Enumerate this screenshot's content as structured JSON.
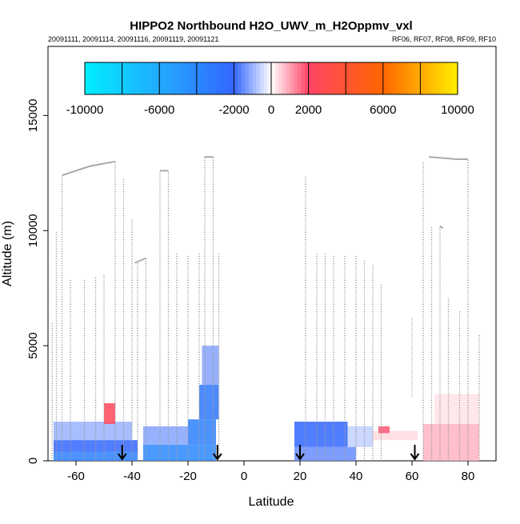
{
  "chart_data": {
    "type": "heatmap",
    "title": "HIPPO2 Northbound H2O_UWV_m_H2Oppmv_vxl",
    "subtitle_left": "20091111, 20091114, 20091116, 20091119, 20091121",
    "subtitle_right": "RF06, RF07, RF08, RF09, RF10",
    "xlabel": "Latitude",
    "ylabel": "Altitude (m)",
    "xlim": [
      -70,
      90
    ],
    "ylim": [
      0,
      18000
    ],
    "xticks": [
      -60,
      -40,
      -20,
      0,
      20,
      40,
      60,
      80
    ],
    "yticks": [
      0,
      5000,
      10000,
      15000
    ],
    "colorbar": {
      "min": -10000,
      "max": 10000,
      "tick_values": [
        -10000,
        -6000,
        -2000,
        0,
        2000,
        6000,
        10000
      ],
      "tick_labels": [
        "-10000",
        "-6000",
        "-2000",
        "0",
        "2000",
        "6000",
        "10000"
      ],
      "colors": [
        "#00eeff",
        "#22aaff",
        "#3366ff",
        "#ffffff",
        "#ff4466",
        "#ff6600",
        "#ffee00"
      ]
    },
    "flight_boundary_markers_lat": [
      -43.5,
      -9.5,
      20,
      61
    ],
    "flight_track_segments": [
      [
        [
          -65,
          12400
        ],
        [
          -55,
          12800
        ],
        [
          -46,
          13000
        ]
      ],
      [
        [
          -30,
          12600
        ],
        [
          -27,
          12600
        ]
      ],
      [
        [
          -14,
          13200
        ],
        [
          -11,
          13200
        ]
      ],
      [
        [
          -39,
          8600
        ],
        [
          -35,
          8800
        ]
      ],
      [
        [
          66,
          13200
        ],
        [
          76,
          13100
        ],
        [
          80,
          13100
        ]
      ],
      [
        [
          70,
          10200
        ],
        [
          71,
          10100
        ]
      ]
    ],
    "profile_legs": [
      [
        -68.5,
        0,
        6000
      ],
      [
        -67,
        0,
        10000
      ],
      [
        -65,
        0,
        12400
      ],
      [
        -62,
        0,
        7900
      ],
      [
        -57,
        0,
        7900
      ],
      [
        -53,
        0,
        8000
      ],
      [
        -50,
        0,
        8100
      ],
      [
        -46,
        0,
        13000
      ],
      [
        -43,
        0,
        12300
      ],
      [
        -40,
        0,
        10500
      ],
      [
        -38,
        0,
        8600
      ],
      [
        -35,
        0,
        8800
      ],
      [
        -30,
        0,
        12600
      ],
      [
        -27,
        0,
        12600
      ],
      [
        -24,
        0,
        9000
      ],
      [
        -20,
        0,
        8900
      ],
      [
        -16,
        0,
        9000
      ],
      [
        -14,
        0,
        13200
      ],
      [
        -11,
        0,
        13200
      ],
      [
        -9,
        0,
        9000
      ],
      [
        22,
        0,
        12400
      ],
      [
        26,
        0,
        9000
      ],
      [
        29,
        0,
        9000
      ],
      [
        32,
        0,
        8900
      ],
      [
        36,
        0,
        8900
      ],
      [
        40,
        0,
        8900
      ],
      [
        43,
        0,
        8700
      ],
      [
        46,
        0,
        8500
      ],
      [
        49,
        0,
        7700
      ],
      [
        60,
        2800,
        6200
      ],
      [
        64,
        0,
        13000
      ],
      [
        67,
        0,
        10200
      ],
      [
        70,
        0,
        10200
      ],
      [
        73,
        0,
        7100
      ],
      [
        77,
        0,
        6500
      ],
      [
        80,
        0,
        13100
      ],
      [
        84,
        0,
        5500
      ]
    ],
    "anomaly_cells": [
      {
        "lat": [
          -68,
          -38
        ],
        "alt": [
          0,
          400
        ],
        "value": -3500
      },
      {
        "lat": [
          -68,
          -38
        ],
        "alt": [
          400,
          900
        ],
        "value": -2000
      },
      {
        "lat": [
          -68,
          -40
        ],
        "alt": [
          900,
          1700
        ],
        "value": -1000
      },
      {
        "lat": [
          -50,
          -46
        ],
        "alt": [
          1600,
          2500
        ],
        "value": 2500
      },
      {
        "lat": [
          -36,
          -10
        ],
        "alt": [
          0,
          700
        ],
        "value": -4000
      },
      {
        "lat": [
          -36,
          -20
        ],
        "alt": [
          700,
          1500
        ],
        "value": -1200
      },
      {
        "lat": [
          -20,
          -10
        ],
        "alt": [
          700,
          1800
        ],
        "value": -3500
      },
      {
        "lat": [
          -16,
          -9
        ],
        "alt": [
          1800,
          3300
        ],
        "value": -3000
      },
      {
        "lat": [
          -15,
          -9
        ],
        "alt": [
          3300,
          5000
        ],
        "value": -1200
      },
      {
        "lat": [
          18,
          40
        ],
        "alt": [
          0,
          600
        ],
        "value": -1500
      },
      {
        "lat": [
          18,
          37
        ],
        "alt": [
          600,
          1700
        ],
        "value": -2000
      },
      {
        "lat": [
          37,
          46
        ],
        "alt": [
          600,
          1500
        ],
        "value": -600
      },
      {
        "lat": [
          46,
          62
        ],
        "alt": [
          900,
          1300
        ],
        "value": 400
      },
      {
        "lat": [
          48,
          52
        ],
        "alt": [
          1200,
          1500
        ],
        "value": 1800
      },
      {
        "lat": [
          64,
          84
        ],
        "alt": [
          0,
          1600
        ],
        "value": 800
      },
      {
        "lat": [
          68,
          84
        ],
        "alt": [
          1600,
          2900
        ],
        "value": 300
      }
    ]
  }
}
